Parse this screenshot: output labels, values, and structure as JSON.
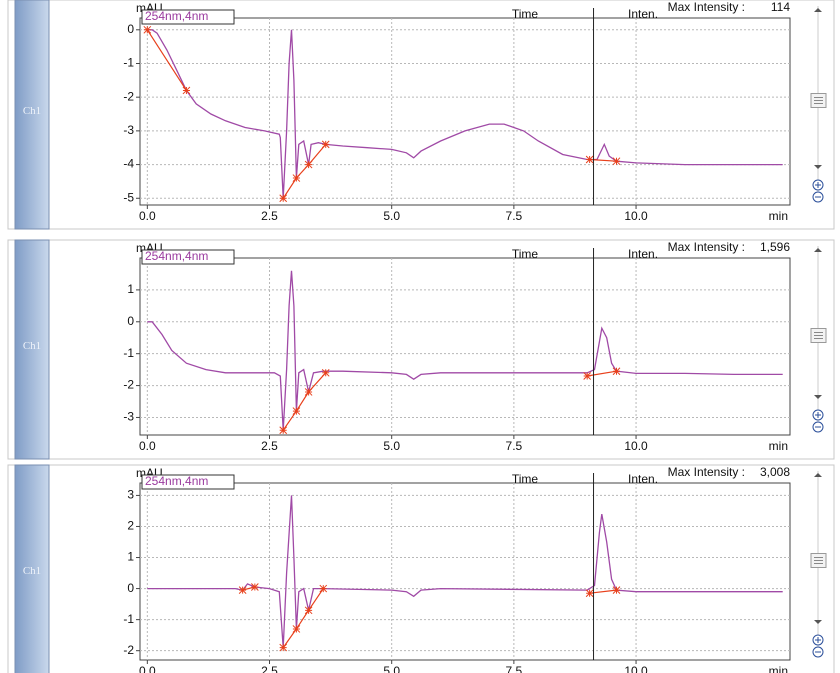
{
  "chart_data": [
    {
      "type": "line",
      "channel": "Ch1",
      "y_label": "mAU",
      "detector": "254nm,4nm",
      "time_label": "Time",
      "inten_label": "Inten.",
      "max_intensity_label": "Max Intensity :",
      "max_intensity": 114,
      "x_label": "min",
      "xlim": [
        -0.15,
        13.15
      ],
      "ylim": [
        -5.2,
        0.35
      ],
      "xticks": [
        {
          "value": 0,
          "label": "0.0"
        },
        {
          "value": 2.5,
          "label": "2.5"
        },
        {
          "value": 5,
          "label": "5.0"
        },
        {
          "value": 7.5,
          "label": "7.5"
        },
        {
          "value": 10,
          "label": "10.0"
        }
      ],
      "yticks": [
        -5,
        -4,
        -3,
        -2,
        -1,
        0
      ],
      "grid": true,
      "color": "#a04aa6",
      "baseline_color": "#e8401c",
      "cursor_x": 9.13,
      "x": [
        0,
        0.1,
        0.2,
        0.4,
        0.6,
        0.8,
        1.0,
        1.3,
        1.6,
        2.0,
        2.4,
        2.7,
        2.72,
        2.78,
        2.85,
        2.9,
        2.95,
        3.0,
        3.05,
        3.1,
        3.2,
        3.3,
        3.35,
        3.5,
        3.65,
        4.0,
        4.5,
        5.0,
        5.3,
        5.45,
        5.6,
        6.0,
        6.5,
        7.0,
        7.3,
        7.7,
        8.0,
        8.5,
        9.0,
        9.2,
        9.35,
        9.45,
        9.6,
        10.0,
        11.0,
        12.0,
        13.0
      ],
      "values": [
        0,
        0,
        -0.1,
        -0.6,
        -1.2,
        -1.8,
        -2.2,
        -2.5,
        -2.7,
        -2.9,
        -3.0,
        -3.1,
        -3.2,
        -5.0,
        -3.0,
        -1.0,
        0,
        -1.5,
        -4.4,
        -3.4,
        -3.3,
        -4.0,
        -3.4,
        -3.35,
        -3.4,
        -3.45,
        -3.5,
        -3.55,
        -3.65,
        -3.8,
        -3.6,
        -3.3,
        -3.0,
        -2.8,
        -2.8,
        -3.0,
        -3.3,
        -3.7,
        -3.85,
        -3.85,
        -3.4,
        -3.75,
        -3.9,
        -3.95,
        -4.0,
        -4.0,
        -4.0
      ],
      "baselines": [
        {
          "x": [
            0,
            0.8
          ],
          "y": [
            0,
            -1.8
          ]
        },
        {
          "x": [
            2.78,
            3.05,
            3.3,
            3.65
          ],
          "y": [
            -5.0,
            -4.4,
            -4.0,
            -3.4
          ]
        },
        {
          "x": [
            9.05,
            9.6
          ],
          "y": [
            -3.85,
            -3.9
          ]
        }
      ]
    },
    {
      "type": "line",
      "channel": "Ch1",
      "y_label": "mAU",
      "detector": "254nm,4nm",
      "time_label": "Time",
      "inten_label": "Inten.",
      "max_intensity_label": "Max Intensity :",
      "max_intensity": {
        "value": 1596,
        "label": "1,596"
      },
      "x_label": "min",
      "xlim": [
        -0.15,
        13.15
      ],
      "ylim": [
        -3.55,
        2.0
      ],
      "xticks": [
        {
          "value": 0,
          "label": "0.0"
        },
        {
          "value": 2.5,
          "label": "2.5"
        },
        {
          "value": 5,
          "label": "5.0"
        },
        {
          "value": 7.5,
          "label": "7.5"
        },
        {
          "value": 10,
          "label": "10.0"
        }
      ],
      "yticks": [
        -3,
        -2,
        -1,
        0,
        1
      ],
      "grid": true,
      "color": "#a04aa6",
      "baseline_color": "#e8401c",
      "cursor_x": 9.13,
      "x": [
        0,
        0.1,
        0.3,
        0.5,
        0.8,
        1.2,
        1.6,
        2.0,
        2.6,
        2.72,
        2.78,
        2.85,
        2.9,
        2.95,
        3.0,
        3.05,
        3.1,
        3.2,
        3.3,
        3.4,
        3.6,
        4.0,
        5.0,
        5.3,
        5.45,
        5.6,
        6.0,
        7.0,
        8.0,
        9.0,
        9.15,
        9.3,
        9.4,
        9.5,
        9.6,
        10.0,
        11.0,
        12.0,
        13.0
      ],
      "values": [
        0,
        0,
        -0.4,
        -0.9,
        -1.3,
        -1.5,
        -1.6,
        -1.6,
        -1.6,
        -1.7,
        -3.4,
        -1.5,
        0.5,
        1.6,
        0.5,
        -2.8,
        -1.6,
        -1.5,
        -2.2,
        -1.6,
        -1.55,
        -1.55,
        -1.6,
        -1.65,
        -1.8,
        -1.65,
        -1.6,
        -1.6,
        -1.6,
        -1.6,
        -1.5,
        -0.2,
        -0.5,
        -1.3,
        -1.55,
        -1.62,
        -1.62,
        -1.65,
        -1.65
      ],
      "baselines": [
        {
          "x": [
            2.78,
            3.05,
            3.3,
            3.65
          ],
          "y": [
            -3.4,
            -2.8,
            -2.2,
            -1.6
          ]
        },
        {
          "x": [
            9.0,
            9.6
          ],
          "y": [
            -1.7,
            -1.55
          ]
        }
      ]
    },
    {
      "type": "line",
      "channel": "Ch1",
      "y_label": "mAU",
      "detector": "254nm,4nm",
      "time_label": "Time",
      "inten_label": "Inten.",
      "max_intensity_label": "Max Intensity :",
      "max_intensity": {
        "value": 3008,
        "label": "3,008"
      },
      "x_label": "min",
      "xlim": [
        -0.15,
        13.15
      ],
      "ylim": [
        -2.3,
        3.4
      ],
      "xticks": [
        {
          "value": 0,
          "label": "0.0"
        },
        {
          "value": 2.5,
          "label": "2.5"
        },
        {
          "value": 5,
          "label": "5.0"
        },
        {
          "value": 7.5,
          "label": "7.5"
        },
        {
          "value": 10,
          "label": "10.0"
        }
      ],
      "yticks": [
        -2,
        -1,
        0,
        1,
        2,
        3
      ],
      "grid": true,
      "color": "#a04aa6",
      "baseline_color": "#e8401c",
      "cursor_x": 9.13,
      "x": [
        0,
        1.8,
        1.95,
        2.05,
        2.2,
        2.5,
        2.7,
        2.78,
        2.85,
        2.95,
        3.0,
        3.05,
        3.1,
        3.2,
        3.3,
        3.4,
        3.6,
        5.0,
        5.3,
        5.45,
        5.6,
        6.0,
        9.0,
        9.15,
        9.25,
        9.3,
        9.4,
        9.5,
        9.6,
        10.0,
        13.0
      ],
      "values": [
        0,
        0,
        -0.05,
        0.15,
        0.05,
        0,
        -0.1,
        -1.9,
        0.5,
        3.0,
        1.0,
        -1.3,
        -0.1,
        0,
        -0.7,
        0,
        0,
        -0.05,
        -0.1,
        -0.25,
        -0.05,
        0,
        -0.05,
        0.1,
        1.8,
        2.4,
        1.5,
        0.3,
        -0.05,
        -0.1,
        -0.1
      ],
      "baselines": [
        {
          "x": [
            1.95,
            2.2
          ],
          "y": [
            -0.05,
            0.05
          ]
        },
        {
          "x": [
            2.78,
            3.05,
            3.3,
            3.6
          ],
          "y": [
            -1.9,
            -1.3,
            -0.7,
            0
          ]
        },
        {
          "x": [
            9.05,
            9.6
          ],
          "y": [
            -0.15,
            -0.05
          ]
        }
      ]
    }
  ]
}
